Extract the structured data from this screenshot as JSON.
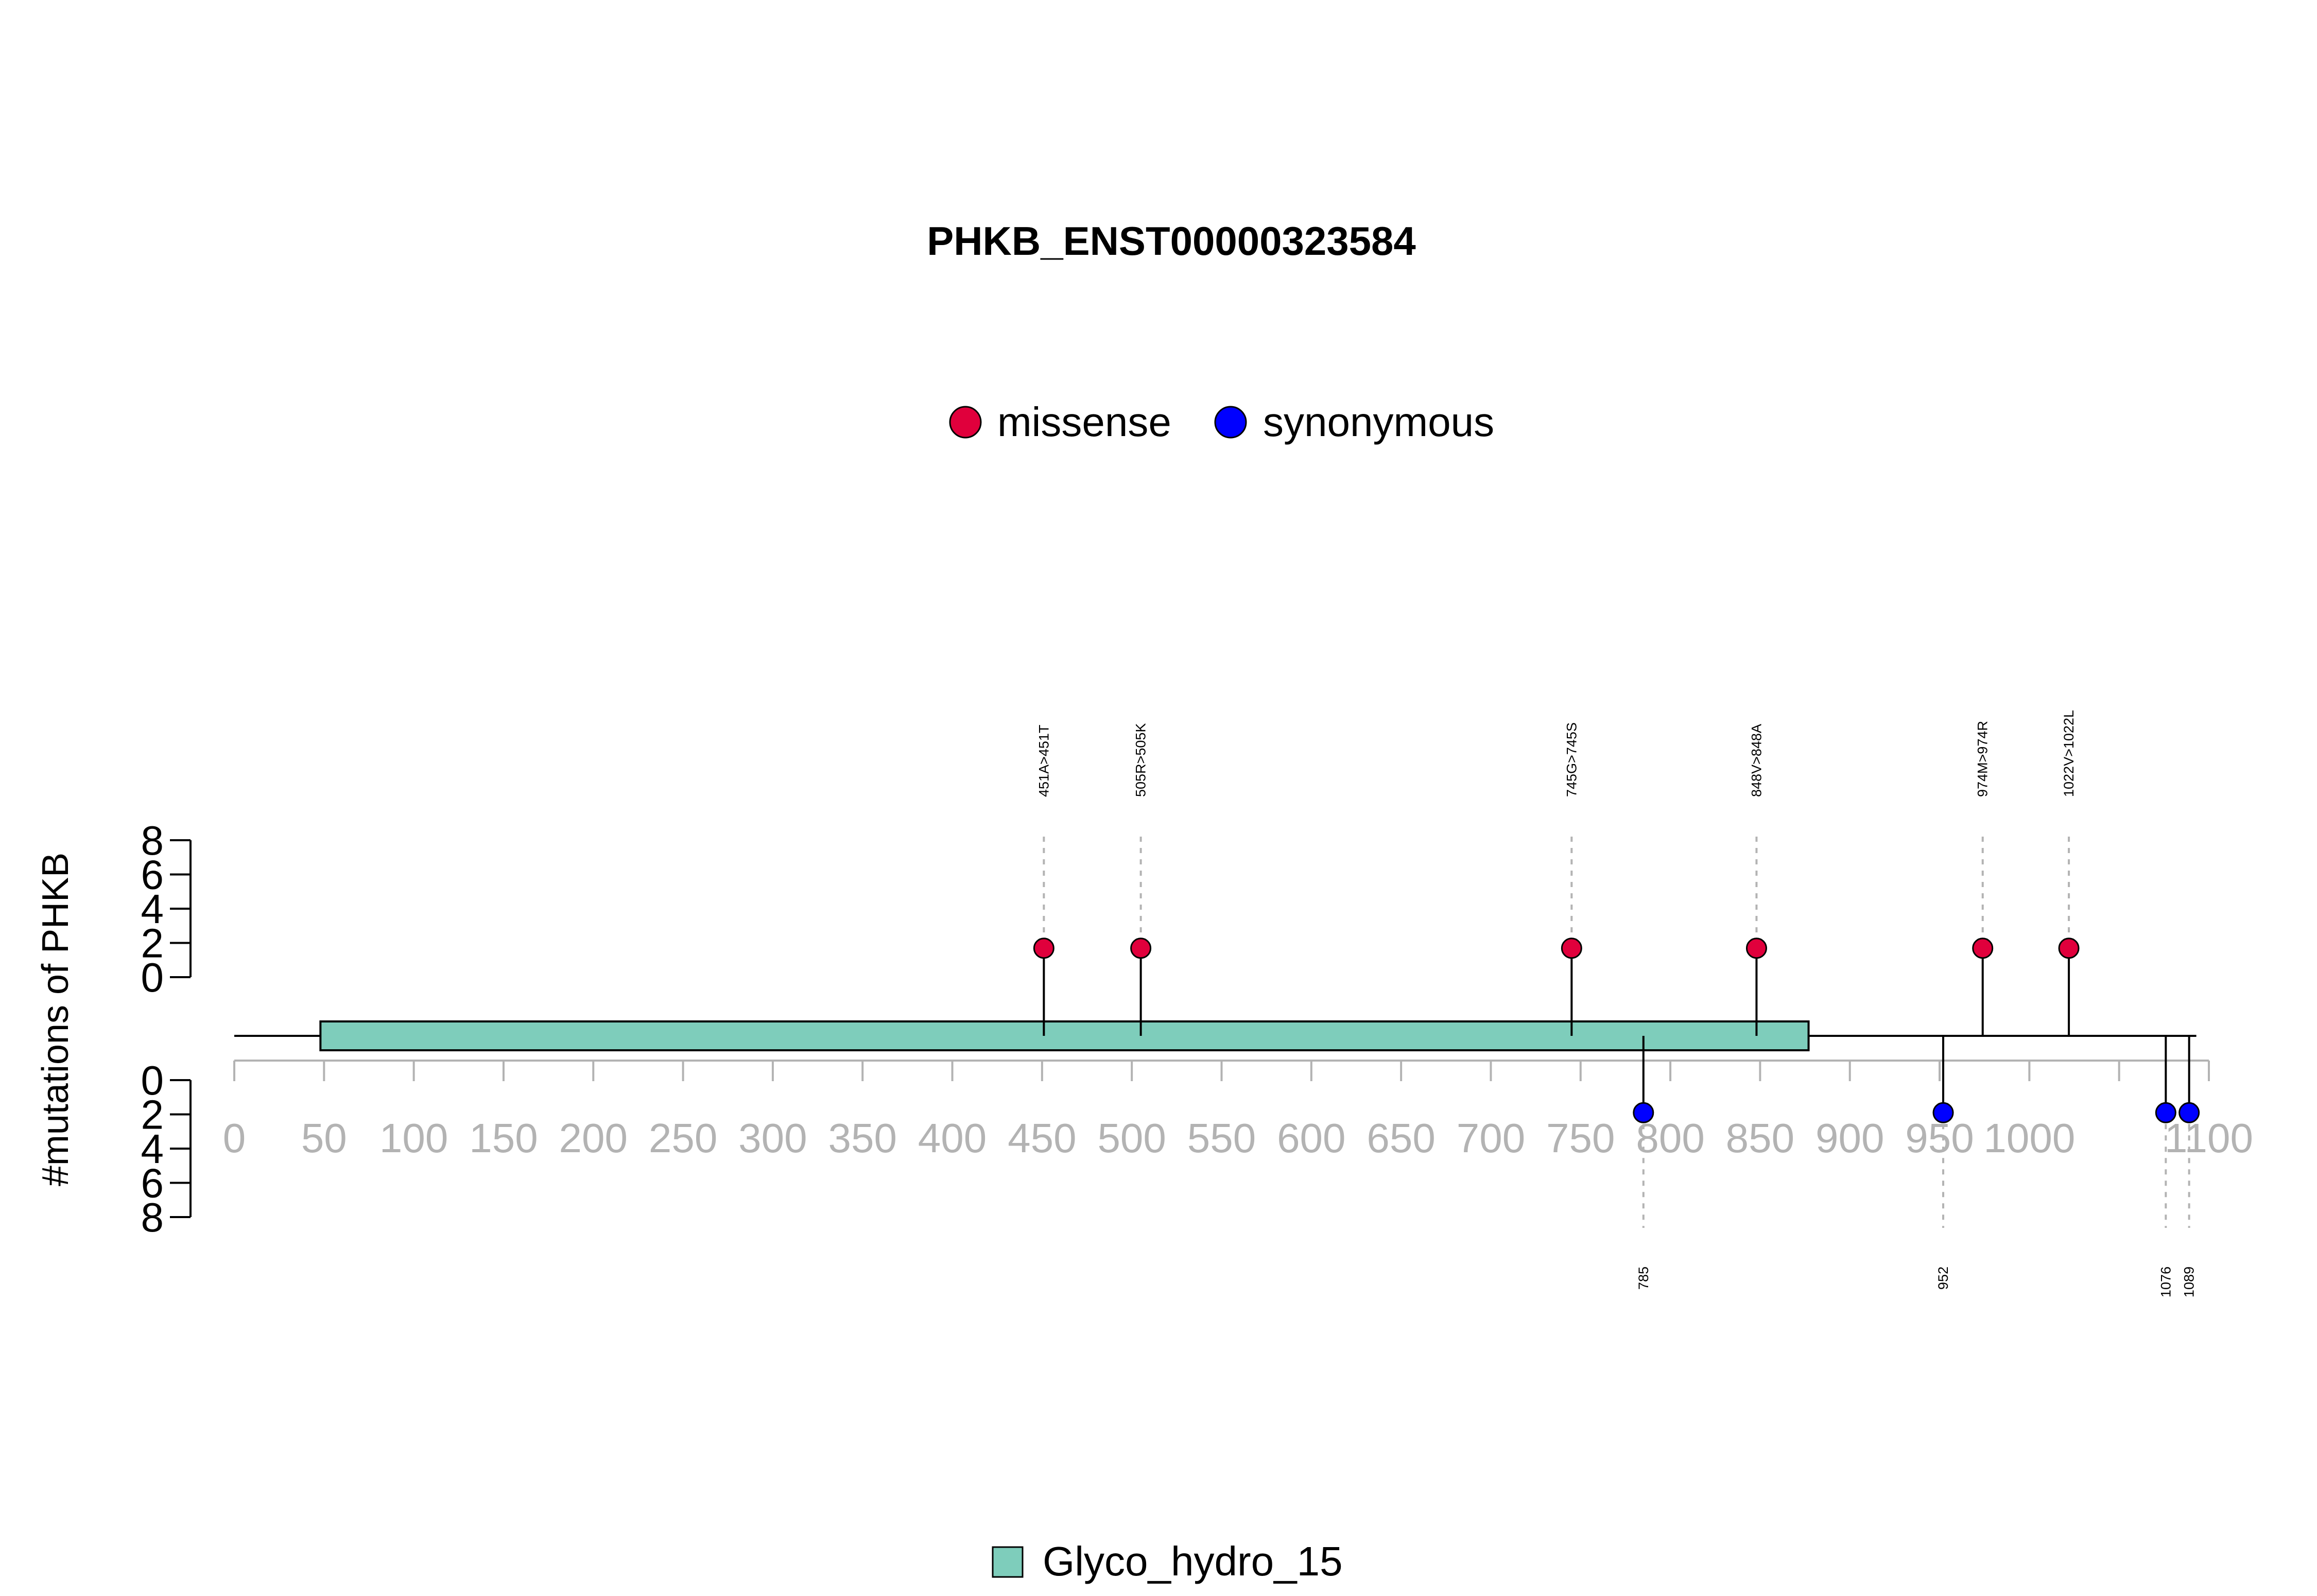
{
  "chart_data": {
    "type": "lollipop",
    "title": "PHKB_ENST00000323584",
    "ylabel": "#mutations of PHKB",
    "protein_length": 1093,
    "xlim": [
      0,
      1100
    ],
    "x_ticks": [
      0,
      50,
      100,
      150,
      200,
      250,
      300,
      350,
      400,
      450,
      500,
      550,
      600,
      650,
      700,
      750,
      800,
      850,
      900,
      950,
      1000,
      1050,
      1100
    ],
    "x_tick_labels": [
      "0",
      "50",
      "100",
      "150",
      "200",
      "250",
      "300",
      "350",
      "400",
      "450",
      "500",
      "550",
      "600",
      "650",
      "700",
      "750",
      "800",
      "850",
      "900",
      "950",
      "1000",
      "",
      "1100"
    ],
    "y_ticks_up": [
      0,
      2,
      4,
      6,
      8
    ],
    "y_ticks_down": [
      0,
      2,
      4,
      6,
      8
    ],
    "ylim": [
      0,
      8
    ],
    "legend": [
      {
        "label": "missense",
        "color": "#e0003c"
      },
      {
        "label": "synonymous",
        "color": "#0000ff"
      }
    ],
    "domains": [
      {
        "name": "Glyco_hydro_15",
        "start": 48,
        "end": 877,
        "color": "#7ecdbb"
      }
    ],
    "mutations_up": [
      {
        "pos": 451,
        "label": "451A>451T",
        "type": "missense",
        "count": 1
      },
      {
        "pos": 505,
        "label": "505R>505K",
        "type": "missense",
        "count": 1
      },
      {
        "pos": 745,
        "label": "745G>745S",
        "type": "missense",
        "count": 1
      },
      {
        "pos": 848,
        "label": "848V>848A",
        "type": "missense",
        "count": 1
      },
      {
        "pos": 974,
        "label": "974M>974R",
        "type": "missense",
        "count": 1
      },
      {
        "pos": 1022,
        "label": "1022V>1022L",
        "type": "missense",
        "count": 1
      }
    ],
    "mutations_down": [
      {
        "pos": 785,
        "label": "785",
        "type": "synonymous",
        "count": 1
      },
      {
        "pos": 952,
        "label": "952",
        "type": "synonymous",
        "count": 1
      },
      {
        "pos": 1076,
        "label": "1076",
        "type": "synonymous",
        "count": 1
      },
      {
        "pos": 1089,
        "label": "1089",
        "type": "synonymous",
        "count": 1
      }
    ]
  }
}
